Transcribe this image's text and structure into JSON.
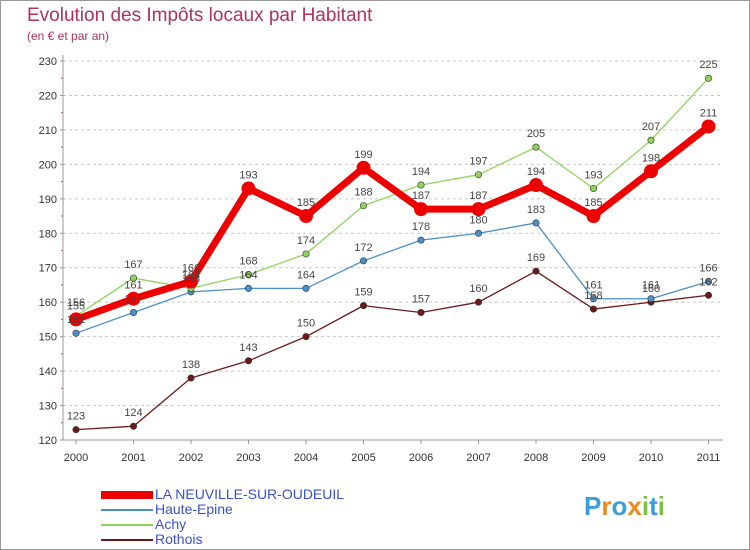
{
  "chart_data": {
    "type": "line",
    "title": "Evolution des Impôts locaux par Habitant",
    "subtitle": "(en € et par an)",
    "xlabel": "",
    "ylabel": "",
    "ylim": [
      120,
      230
    ],
    "yticks": [
      120,
      130,
      140,
      150,
      160,
      170,
      180,
      190,
      200,
      210,
      220,
      230
    ],
    "x": [
      "2000",
      "2001",
      "2002",
      "2003",
      "2004",
      "2005",
      "2006",
      "2007",
      "2008",
      "2009",
      "2010",
      "2011"
    ],
    "grid": "horizontal-dashed",
    "legend_position": "bottom-left",
    "series": [
      {
        "name": "Rothois",
        "color": "#6b1a1a",
        "values": [
          123,
          124,
          138,
          143,
          150,
          159,
          157,
          160,
          169,
          158,
          160,
          162
        ],
        "labels": [
          "123",
          "124",
          "138",
          "143",
          "150",
          "159",
          "157",
          "160",
          "169",
          "158",
          "160",
          "162"
        ]
      },
      {
        "name": "Haute-Epine",
        "color": "#4a90c8",
        "values": [
          151,
          157,
          163,
          164,
          164,
          172,
          178,
          180,
          183,
          161,
          161,
          166
        ],
        "labels": [
          "151",
          "157",
          "163",
          "164",
          "164",
          "172",
          "178",
          "180",
          "183",
          "161",
          "161",
          "166"
        ]
      },
      {
        "name": "Achy",
        "color": "#8ed45a",
        "values": [
          156,
          167,
          164,
          168,
          174,
          188,
          194,
          197,
          205,
          193,
          207,
          225
        ],
        "labels": [
          "156",
          "167",
          "164",
          "168",
          "174",
          "188",
          "194",
          "197",
          "205",
          "193",
          "207",
          "225"
        ]
      },
      {
        "name": "LA NEUVILLE-SUR-OUDEUIL",
        "color": "#ee0000",
        "values": [
          155,
          161,
          166,
          193,
          185,
          199,
          187,
          187,
          194,
          185,
          198,
          211
        ],
        "labels": [
          "155",
          "161",
          "166",
          "193",
          "185",
          "199",
          "187",
          "187",
          "194",
          "185",
          "198",
          "211"
        ]
      }
    ],
    "legend": [
      {
        "name": "LA NEUVILLE-SUR-OUDEUIL",
        "color": "#ee0000"
      },
      {
        "name": "Haute-Epine",
        "color": "#4a90c8"
      },
      {
        "name": "Achy",
        "color": "#8ed45a"
      },
      {
        "name": "Rothois",
        "color": "#6b1a1a"
      }
    ]
  },
  "logo": {
    "letters": [
      {
        "char": "P",
        "color": "#3aa0dc"
      },
      {
        "char": "r",
        "color": "#f08a1a"
      },
      {
        "char": "o",
        "color": "#3aa0dc"
      },
      {
        "char": "x",
        "color": "#f08a1a"
      },
      {
        "char": "i",
        "color": "#7cc142"
      },
      {
        "char": "t",
        "color": "#3aa0dc"
      },
      {
        "char": "i",
        "color": "#7cc142"
      }
    ]
  }
}
